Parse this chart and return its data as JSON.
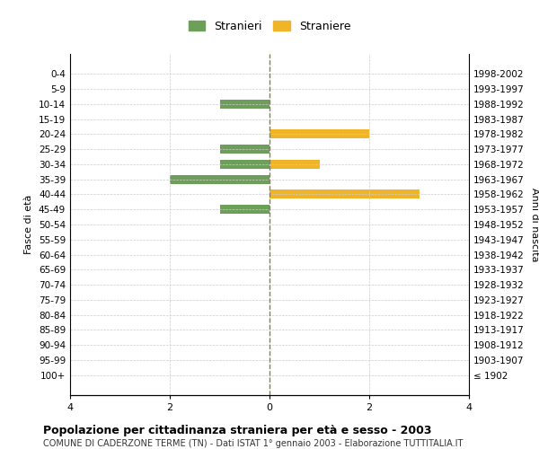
{
  "age_groups": [
    "100+",
    "95-99",
    "90-94",
    "85-89",
    "80-84",
    "75-79",
    "70-74",
    "65-69",
    "60-64",
    "55-59",
    "50-54",
    "45-49",
    "40-44",
    "35-39",
    "30-34",
    "25-29",
    "20-24",
    "15-19",
    "10-14",
    "5-9",
    "0-4"
  ],
  "birth_years": [
    "≤ 1902",
    "1903-1907",
    "1908-1912",
    "1913-1917",
    "1918-1922",
    "1923-1927",
    "1928-1932",
    "1933-1937",
    "1938-1942",
    "1943-1947",
    "1948-1952",
    "1953-1957",
    "1958-1962",
    "1963-1967",
    "1968-1972",
    "1973-1977",
    "1978-1982",
    "1983-1987",
    "1988-1992",
    "1993-1997",
    "1998-2002"
  ],
  "males": [
    0,
    0,
    0,
    0,
    0,
    0,
    0,
    0,
    0,
    0,
    0,
    1,
    0,
    2,
    1,
    1,
    0,
    0,
    1,
    0,
    0
  ],
  "females": [
    0,
    0,
    0,
    0,
    0,
    0,
    0,
    0,
    0,
    0,
    0,
    0,
    3,
    0,
    1,
    0,
    2,
    0,
    0,
    0,
    0
  ],
  "male_color": "#6d9e5a",
  "female_color": "#f0b429",
  "xlim": 4,
  "title": "Popolazione per cittadinanza straniera per età e sesso - 2003",
  "subtitle": "COMUNE DI CADERZONE TERME (TN) - Dati ISTAT 1° gennaio 2003 - Elaborazione TUTTITALIA.IT",
  "ylabel_left": "Fasce di età",
  "ylabel_right": "Anni di nascita",
  "legend_male": "Stranieri",
  "legend_female": "Straniere",
  "bg_color": "#ffffff",
  "grid_color": "#cccccc",
  "center_line_color": "#808060"
}
